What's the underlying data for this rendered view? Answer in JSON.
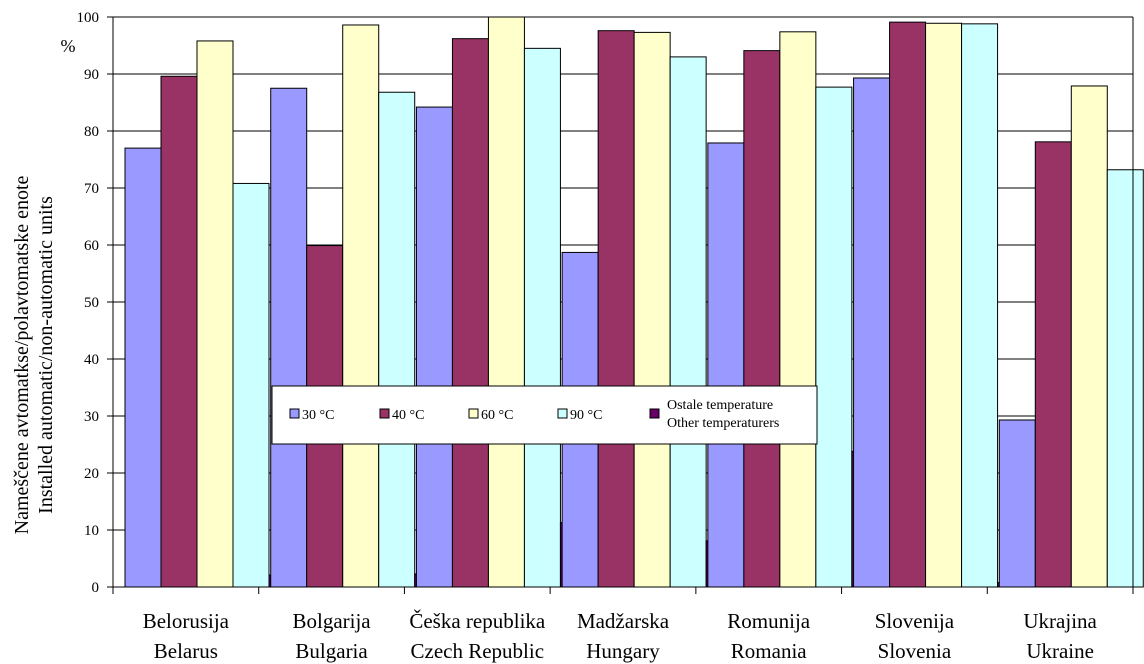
{
  "chart_data": {
    "type": "bar",
    "unit_label": "%",
    "ylabel_line1": "Nameščene avtomatkse/polavtomatske enote",
    "ylabel_line2": "Installed automatic/non-automatic units",
    "ylim": [
      0,
      100
    ],
    "yticks": [
      0,
      10,
      20,
      30,
      40,
      50,
      60,
      70,
      80,
      90,
      100
    ],
    "grid": true,
    "legend_placement": "center",
    "categories": [
      [
        "Belorusija",
        "Belarus"
      ],
      [
        "Bolgarija",
        "Bulgaria"
      ],
      [
        "Češka republika",
        "Czech Republic"
      ],
      [
        "Madžarska",
        "Hungary"
      ],
      [
        "Romunija",
        "Romania"
      ],
      [
        "Slovenija",
        "Slovenia"
      ],
      [
        "Ukrajina",
        "Ukraine"
      ]
    ],
    "series": [
      {
        "name": "30 °C",
        "color": "#9999ff",
        "values": [
          77,
          87.5,
          84.2,
          58.7,
          77.9,
          89.3,
          29.3
        ]
      },
      {
        "name": "40 °C",
        "color": "#993366",
        "values": [
          89.6,
          59.9,
          96.2,
          97.6,
          94.1,
          99.1,
          78.1
        ]
      },
      {
        "name": "60 °C",
        "color": "#ffffcc",
        "values": [
          95.8,
          98.6,
          100,
          97.3,
          97.4,
          98.9,
          87.9
        ]
      },
      {
        "name": "90 °C",
        "color": "#ccffff",
        "values": [
          70.8,
          86.8,
          94.5,
          93,
          87.7,
          98.8,
          73.2
        ]
      },
      {
        "name": [
          "Ostale temperature",
          "Other temperaturers"
        ],
        "color": "#660066",
        "values": [
          2.1,
          2.3,
          11.3,
          8.1,
          23.8,
          0.8,
          null
        ]
      }
    ]
  }
}
